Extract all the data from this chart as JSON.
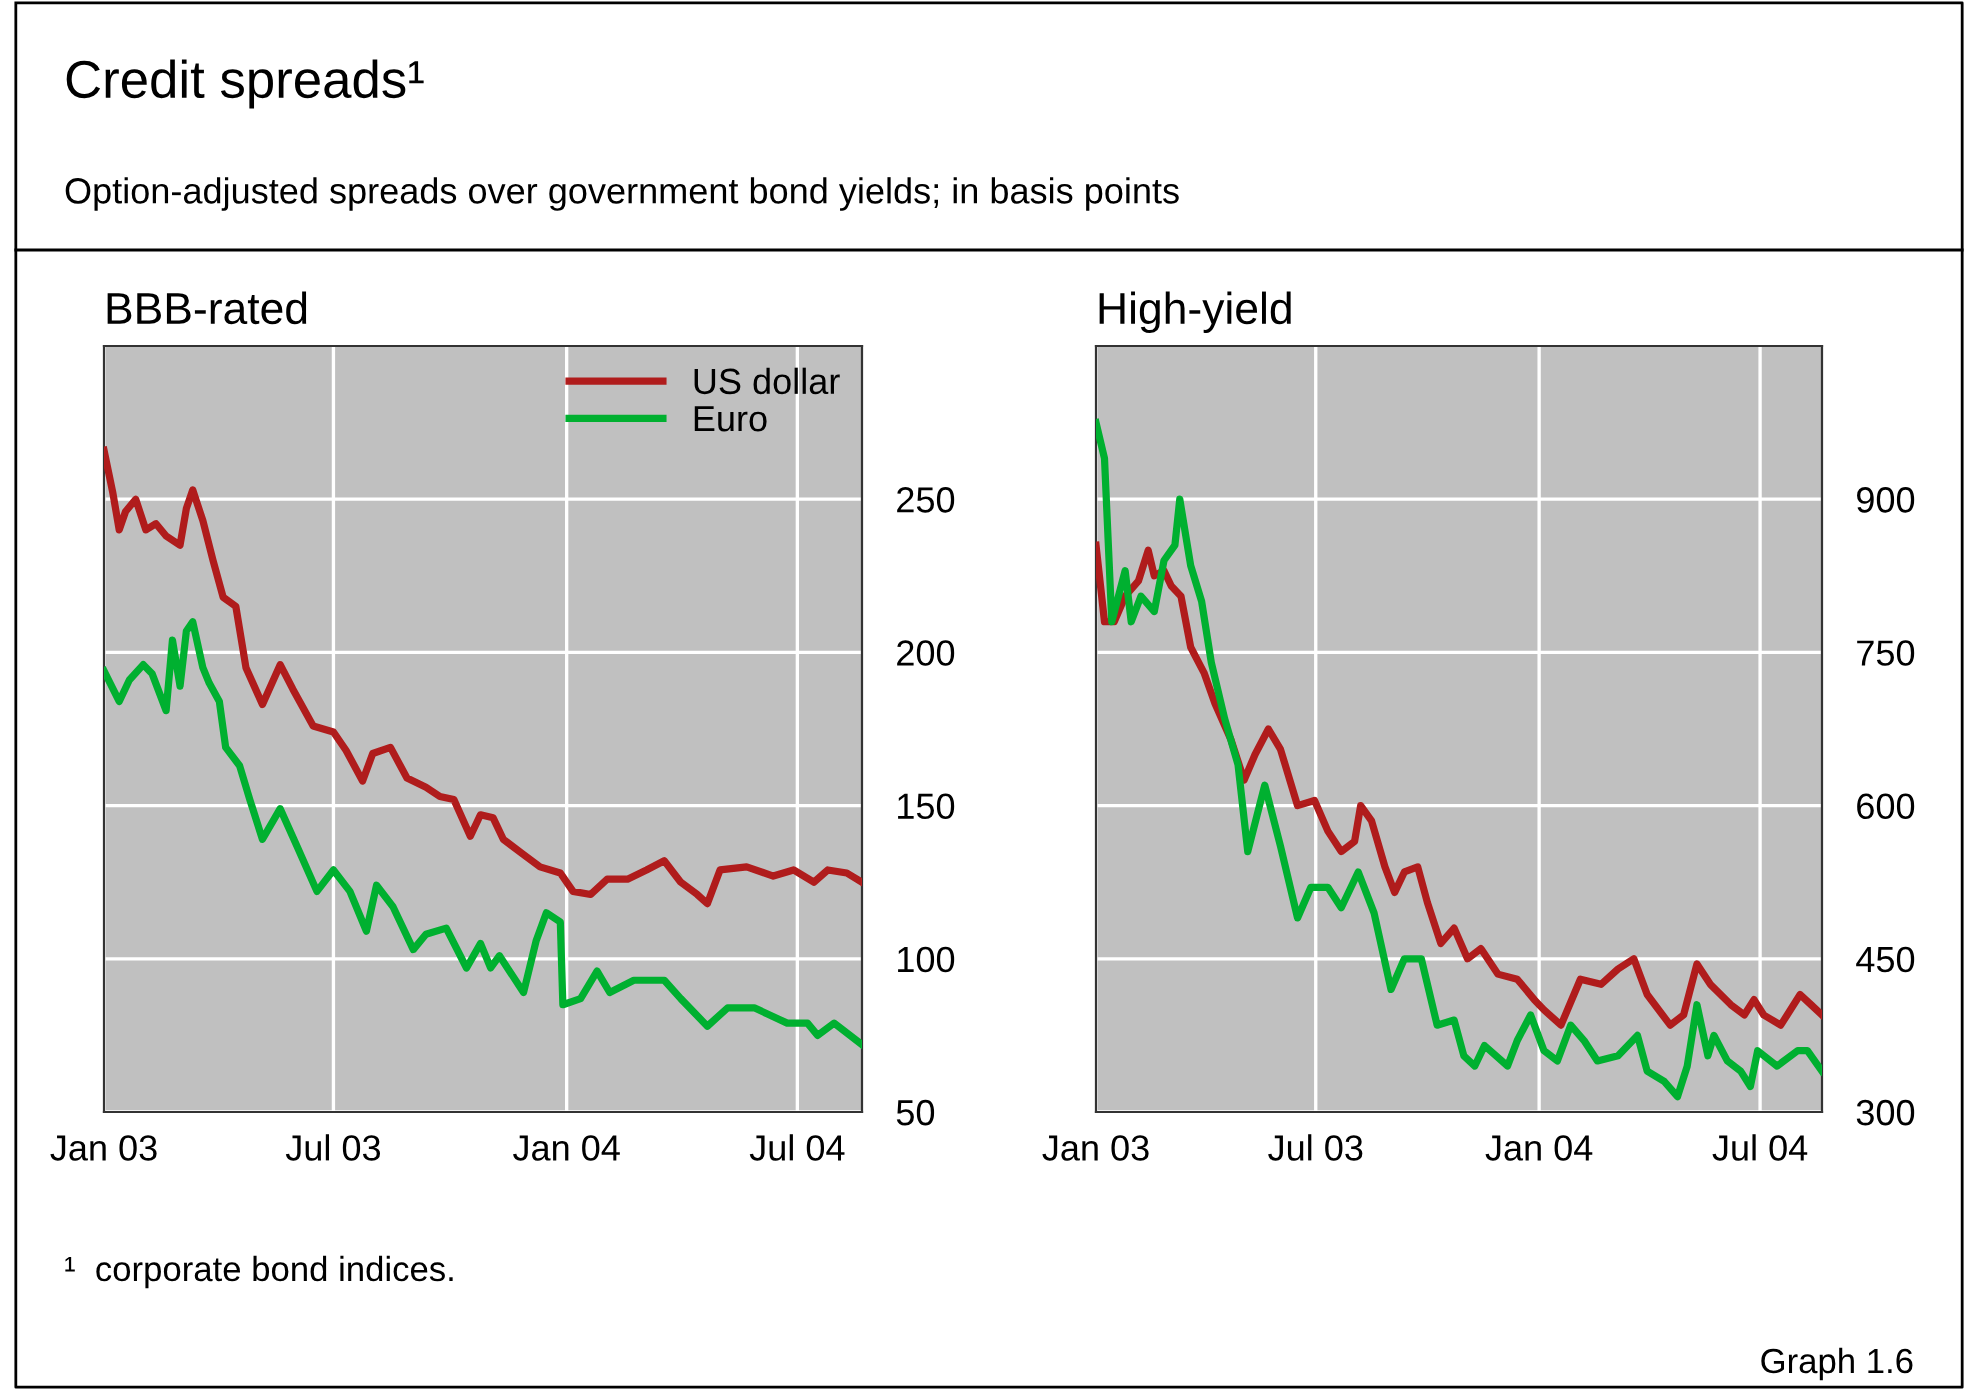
{
  "chart_data": [
    {
      "type": "line",
      "title": "BBB-rated",
      "annotations": [
        "Credit spreads¹",
        "Option-adjusted spreads over government bond yields; in basis points",
        "¹  corporate bond indices.",
        "Graph 1.6"
      ],
      "xlim": [
        "2003-01-01",
        "2004-08-21"
      ],
      "xticks": [
        {
          "value": "2003-01-01",
          "label": "Jan 03"
        },
        {
          "value": "2003-07-01",
          "label": "Jul 03"
        },
        {
          "value": "2004-01-01",
          "label": "Jan 04"
        },
        {
          "value": "2004-07-01",
          "label": "Jul 04"
        }
      ],
      "ylim": [
        50,
        300
      ],
      "yticks": [
        50,
        100,
        150,
        200,
        250
      ],
      "grid": true,
      "legend": "top right",
      "series": [
        {
          "name": "US dollar",
          "color": "#b01c1c",
          "x": [
            "2003-01-01",
            "2003-01-08",
            "2003-01-13",
            "2003-01-18",
            "2003-01-26",
            "2003-02-03",
            "2003-02-11",
            "2003-02-19",
            "2003-03-02",
            "2003-03-07",
            "2003-03-12",
            "2003-03-20",
            "2003-03-28",
            "2003-04-05",
            "2003-04-15",
            "2003-04-23",
            "2003-05-06",
            "2003-05-20",
            "2003-05-30",
            "2003-06-15",
            "2003-07-01",
            "2003-07-11",
            "2003-07-24",
            "2003-08-01",
            "2003-08-15",
            "2003-08-28",
            "2003-09-12",
            "2003-09-23",
            "2003-10-04",
            "2003-10-17",
            "2003-10-25",
            "2003-11-04",
            "2003-11-12",
            "2003-11-28",
            "2003-12-11",
            "2003-12-27",
            "2004-01-06",
            "2004-01-20",
            "2004-02-02",
            "2004-02-18",
            "2004-03-04",
            "2004-03-18",
            "2004-03-31",
            "2004-04-13",
            "2004-04-21",
            "2004-05-01",
            "2004-05-22",
            "2004-06-12",
            "2004-06-28",
            "2004-07-14",
            "2004-07-25",
            "2004-08-09",
            "2004-08-21"
          ],
          "values": [
            266,
            252,
            240,
            246,
            250,
            240,
            242,
            238,
            235,
            247,
            253,
            243,
            230,
            218,
            215,
            195,
            183,
            196,
            188,
            176,
            174,
            168,
            158,
            167,
            169,
            159,
            156,
            153,
            152,
            140,
            147,
            146,
            139,
            134,
            130,
            128,
            122,
            121,
            126,
            126,
            129,
            132,
            125,
            121,
            118,
            129,
            130,
            127,
            129,
            125,
            129,
            128,
            125
          ]
        },
        {
          "name": "Euro",
          "color": "#00b030",
          "x": [
            "2003-01-01",
            "2003-01-13",
            "2003-01-21",
            "2003-02-01",
            "2003-02-08",
            "2003-02-19",
            "2003-02-24",
            "2003-03-02",
            "2003-03-07",
            "2003-03-12",
            "2003-03-20",
            "2003-03-25",
            "2003-04-02",
            "2003-04-07",
            "2003-04-18",
            "2003-04-26",
            "2003-05-06",
            "2003-05-20",
            "2003-06-02",
            "2003-06-18",
            "2003-07-01",
            "2003-07-14",
            "2003-07-27",
            "2003-08-04",
            "2003-08-17",
            "2003-09-02",
            "2003-09-12",
            "2003-09-28",
            "2003-10-14",
            "2003-10-25",
            "2003-11-02",
            "2003-11-09",
            "2003-11-28",
            "2003-12-08",
            "2003-12-16",
            "2003-12-27",
            "2003-12-29",
            "2004-01-12",
            "2004-01-25",
            "2004-02-04",
            "2004-02-23",
            "2004-03-18",
            "2004-03-31",
            "2004-04-21",
            "2004-05-07",
            "2004-05-28",
            "2004-06-23",
            "2004-07-09",
            "2004-07-17",
            "2004-07-30",
            "2004-08-21"
          ],
          "values": [
            194,
            184,
            191,
            196,
            193,
            181,
            204,
            189,
            207,
            210,
            195,
            190,
            184,
            169,
            163,
            152,
            139,
            149,
            137,
            122,
            129,
            122,
            109,
            124,
            117,
            103,
            108,
            110,
            97,
            105,
            97,
            101,
            89,
            106,
            115,
            112,
            85,
            87,
            96,
            89,
            93,
            93,
            87,
            78,
            84,
            84,
            79,
            79,
            75,
            79,
            72
          ]
        }
      ]
    },
    {
      "type": "line",
      "title": "High-yield",
      "xlim": [
        "2003-01-01",
        "2004-08-21"
      ],
      "xticks": [
        {
          "value": "2003-01-01",
          "label": "Jan 03"
        },
        {
          "value": "2003-07-01",
          "label": "Jul 03"
        },
        {
          "value": "2004-01-01",
          "label": "Jan 04"
        },
        {
          "value": "2004-07-01",
          "label": "Jul 04"
        }
      ],
      "ylim": [
        300,
        1050
      ],
      "yticks": [
        300,
        450,
        600,
        750,
        900
      ],
      "grid": true,
      "series": [
        {
          "color": "#b01c1c",
          "x": [
            "2003-01-01",
            "2003-01-08",
            "2003-01-16",
            "2003-01-25",
            "2003-02-05",
            "2003-02-13",
            "2003-02-18",
            "2003-02-26",
            "2003-03-04",
            "2003-03-12",
            "2003-03-20",
            "2003-03-31",
            "2003-04-09",
            "2003-04-22",
            "2003-05-03",
            "2003-05-12",
            "2003-05-23",
            "2003-06-02",
            "2003-06-16",
            "2003-06-30",
            "2003-07-11",
            "2003-07-22",
            "2003-08-02",
            "2003-08-07",
            "2003-08-16",
            "2003-08-27",
            "2003-09-04",
            "2003-09-12",
            "2003-09-23",
            "2003-10-01",
            "2003-10-12",
            "2003-10-23",
            "2003-11-03",
            "2003-11-14",
            "2003-11-28",
            "2003-12-14",
            "2003-12-28",
            "2004-01-05",
            "2004-01-19",
            "2004-02-04",
            "2004-02-21",
            "2004-03-06",
            "2004-03-19",
            "2004-03-30",
            "2004-04-18",
            "2004-04-29",
            "2004-05-10",
            "2004-05-21",
            "2004-06-07",
            "2004-06-18",
            "2004-06-26",
            "2004-07-04",
            "2004-07-18",
            "2004-08-03",
            "2004-08-12",
            "2004-08-21"
          ],
          "values": [
            855,
            780,
            780,
            805,
            820,
            850,
            825,
            830,
            815,
            805,
            755,
            730,
            700,
            665,
            625,
            650,
            675,
            655,
            600,
            605,
            575,
            555,
            565,
            600,
            585,
            540,
            515,
            535,
            540,
            505,
            465,
            480,
            450,
            460,
            435,
            430,
            410,
            400,
            385,
            430,
            425,
            440,
            450,
            415,
            385,
            395,
            445,
            425,
            405,
            395,
            410,
            395,
            385,
            415,
            405,
            395
          ]
        },
        {
          "color": "#00b030",
          "x": [
            "2003-01-01",
            "2003-01-08",
            "2003-01-14",
            "2003-01-25",
            "2003-01-30",
            "2003-02-07",
            "2003-02-18",
            "2003-02-26",
            "2003-03-07",
            "2003-03-11",
            "2003-03-20",
            "2003-03-29",
            "2003-04-06",
            "2003-04-17",
            "2003-04-28",
            "2003-05-06",
            "2003-05-20",
            "2003-06-02",
            "2003-06-16",
            "2003-06-27",
            "2003-07-11",
            "2003-07-22",
            "2003-08-05",
            "2003-08-18",
            "2003-09-01",
            "2003-09-12",
            "2003-09-26",
            "2003-10-09",
            "2003-10-23",
            "2003-10-31",
            "2003-11-09",
            "2003-11-17",
            "2003-12-06",
            "2003-12-14",
            "2003-12-25",
            "2004-01-05",
            "2004-01-16",
            "2004-01-27",
            "2004-02-07",
            "2004-02-18",
            "2004-03-06",
            "2004-03-22",
            "2004-03-30",
            "2004-04-13",
            "2004-04-24",
            "2004-05-02",
            "2004-05-10",
            "2004-05-19",
            "2004-05-24",
            "2004-06-04",
            "2004-06-15",
            "2004-06-23",
            "2004-06-29",
            "2004-07-15",
            "2004-08-01",
            "2004-08-09",
            "2004-08-21"
          ],
          "values": [
            975,
            940,
            780,
            830,
            780,
            805,
            790,
            840,
            855,
            900,
            835,
            800,
            740,
            685,
            640,
            555,
            620,
            560,
            490,
            520,
            520,
            500,
            535,
            495,
            420,
            450,
            450,
            385,
            390,
            355,
            345,
            365,
            345,
            370,
            395,
            360,
            350,
            385,
            370,
            350,
            355,
            375,
            340,
            330,
            315,
            345,
            405,
            355,
            375,
            350,
            340,
            325,
            360,
            345,
            360,
            360,
            340
          ]
        }
      ]
    }
  ]
}
